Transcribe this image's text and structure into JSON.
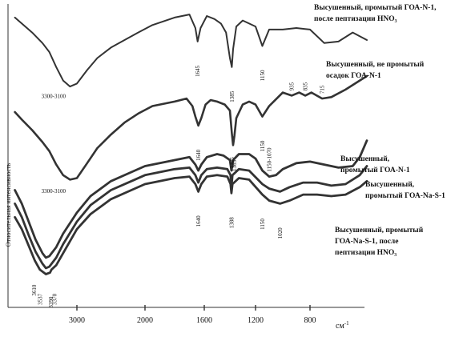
{
  "chart_data": {
    "type": "line",
    "ylabel": "Относительная интенсивность",
    "xunit": "см-1",
    "xunit_base": "см",
    "xunit_sup": "-1",
    "xticks": [
      {
        "label": "3000",
        "value": 3000
      },
      {
        "label": "2000",
        "value": 2000
      },
      {
        "label": "1600",
        "value": 1600
      },
      {
        "label": "1200",
        "value": 1200
      },
      {
        "label": "800",
        "value": 800
      }
    ],
    "series": [
      {
        "name": "Высушенный, промытый ГОА-N-1, после пептизации HNO3",
        "name_lines": [
          "Высушенный, промытый ГОА-N-1,",
          "после    пептизации HNO₃"
        ],
        "points": [
          [
            3900,
            0.955
          ],
          [
            3800,
            0.935
          ],
          [
            3650,
            0.905
          ],
          [
            3500,
            0.87
          ],
          [
            3400,
            0.84
          ],
          [
            3300,
            0.79
          ],
          [
            3200,
            0.745
          ],
          [
            3100,
            0.725
          ],
          [
            3000,
            0.735
          ],
          [
            2850,
            0.78
          ],
          [
            2700,
            0.82
          ],
          [
            2500,
            0.855
          ],
          [
            2300,
            0.88
          ],
          [
            2100,
            0.905
          ],
          [
            1950,
            0.93
          ],
          [
            1800,
            0.955
          ],
          [
            1700,
            0.965
          ],
          [
            1660,
            0.92
          ],
          [
            1645,
            0.875
          ],
          [
            1625,
            0.92
          ],
          [
            1580,
            0.96
          ],
          [
            1520,
            0.95
          ],
          [
            1470,
            0.935
          ],
          [
            1430,
            0.905
          ],
          [
            1400,
            0.82
          ],
          [
            1385,
            0.79
          ],
          [
            1375,
            0.85
          ],
          [
            1350,
            0.925
          ],
          [
            1300,
            0.945
          ],
          [
            1250,
            0.935
          ],
          [
            1200,
            0.925
          ],
          [
            1150,
            0.86
          ],
          [
            1100,
            0.915
          ],
          [
            1000,
            0.915
          ],
          [
            900,
            0.92
          ],
          [
            800,
            0.915
          ],
          [
            700,
            0.87
          ],
          [
            600,
            0.875
          ],
          [
            500,
            0.905
          ],
          [
            400,
            0.88
          ]
        ]
      },
      {
        "name": "Высушенный, не промытый осадок ГОА-N-1",
        "name_lines": [
          "Высушенный,  не промытый",
          "осадок   ГОА-N-1"
        ],
        "points": [
          [
            3900,
            0.64
          ],
          [
            3800,
            0.615
          ],
          [
            3650,
            0.58
          ],
          [
            3500,
            0.54
          ],
          [
            3400,
            0.51
          ],
          [
            3300,
            0.465
          ],
          [
            3200,
            0.43
          ],
          [
            3100,
            0.415
          ],
          [
            3000,
            0.42
          ],
          [
            2850,
            0.47
          ],
          [
            2700,
            0.52
          ],
          [
            2500,
            0.565
          ],
          [
            2300,
            0.605
          ],
          [
            2100,
            0.635
          ],
          [
            1950,
            0.66
          ],
          [
            1800,
            0.675
          ],
          [
            1720,
            0.685
          ],
          [
            1680,
            0.66
          ],
          [
            1660,
            0.625
          ],
          [
            1640,
            0.595
          ],
          [
            1620,
            0.62
          ],
          [
            1590,
            0.665
          ],
          [
            1550,
            0.68
          ],
          [
            1500,
            0.675
          ],
          [
            1440,
            0.665
          ],
          [
            1400,
            0.645
          ],
          [
            1385,
            0.57
          ],
          [
            1375,
            0.53
          ],
          [
            1365,
            0.56
          ],
          [
            1350,
            0.62
          ],
          [
            1300,
            0.665
          ],
          [
            1250,
            0.675
          ],
          [
            1200,
            0.665
          ],
          [
            1150,
            0.625
          ],
          [
            1100,
            0.66
          ],
          [
            1000,
            0.705
          ],
          [
            935,
            0.695
          ],
          [
            880,
            0.705
          ],
          [
            835,
            0.695
          ],
          [
            790,
            0.705
          ],
          [
            715,
            0.685
          ],
          [
            650,
            0.69
          ],
          [
            550,
            0.715
          ],
          [
            450,
            0.745
          ],
          [
            400,
            0.76
          ]
        ]
      },
      {
        "name": "Высушенный, промытый ГОА-N-1",
        "name_lines": [
          "Высушенный,",
          "промытый ГОА-N-1"
        ],
        "points": [
          [
            3900,
            0.38
          ],
          [
            3800,
            0.335
          ],
          [
            3700,
            0.275
          ],
          [
            3600,
            0.215
          ],
          [
            3500,
            0.17
          ],
          [
            3450,
            0.155
          ],
          [
            3400,
            0.16
          ],
          [
            3300,
            0.19
          ],
          [
            3200,
            0.235
          ],
          [
            3000,
            0.305
          ],
          [
            2800,
            0.36
          ],
          [
            2500,
            0.41
          ],
          [
            2200,
            0.44
          ],
          [
            2000,
            0.46
          ],
          [
            1800,
            0.48
          ],
          [
            1700,
            0.49
          ],
          [
            1660,
            0.465
          ],
          [
            1640,
            0.445
          ],
          [
            1620,
            0.465
          ],
          [
            1580,
            0.49
          ],
          [
            1500,
            0.5
          ],
          [
            1450,
            0.495
          ],
          [
            1400,
            0.48
          ],
          [
            1388,
            0.445
          ],
          [
            1375,
            0.48
          ],
          [
            1330,
            0.5
          ],
          [
            1250,
            0.5
          ],
          [
            1200,
            0.485
          ],
          [
            1150,
            0.445
          ],
          [
            1100,
            0.425
          ],
          [
            1050,
            0.43
          ],
          [
            1000,
            0.45
          ],
          [
            900,
            0.47
          ],
          [
            800,
            0.475
          ],
          [
            700,
            0.465
          ],
          [
            600,
            0.455
          ],
          [
            500,
            0.46
          ],
          [
            450,
            0.49
          ],
          [
            400,
            0.545
          ]
        ]
      },
      {
        "name": "Высушенный, промытый ГОА-Na-S-1",
        "name_lines": [
          "Высушенный,",
          "промытый  ГОА-Na-S-1"
        ],
        "points": [
          [
            3900,
            0.335
          ],
          [
            3800,
            0.29
          ],
          [
            3700,
            0.23
          ],
          [
            3600,
            0.175
          ],
          [
            3500,
            0.135
          ],
          [
            3450,
            0.12
          ],
          [
            3400,
            0.125
          ],
          [
            3300,
            0.155
          ],
          [
            3200,
            0.2
          ],
          [
            3000,
            0.275
          ],
          [
            2800,
            0.33
          ],
          [
            2500,
            0.38
          ],
          [
            2200,
            0.41
          ],
          [
            2000,
            0.43
          ],
          [
            1800,
            0.45
          ],
          [
            1700,
            0.455
          ],
          [
            1660,
            0.43
          ],
          [
            1640,
            0.405
          ],
          [
            1620,
            0.43
          ],
          [
            1580,
            0.45
          ],
          [
            1500,
            0.455
          ],
          [
            1420,
            0.45
          ],
          [
            1395,
            0.43
          ],
          [
            1388,
            0.39
          ],
          [
            1380,
            0.43
          ],
          [
            1330,
            0.45
          ],
          [
            1250,
            0.445
          ],
          [
            1150,
            0.4
          ],
          [
            1100,
            0.385
          ],
          [
            1020,
            0.375
          ],
          [
            950,
            0.39
          ],
          [
            850,
            0.405
          ],
          [
            750,
            0.405
          ],
          [
            650,
            0.395
          ],
          [
            550,
            0.4
          ],
          [
            450,
            0.43
          ],
          [
            400,
            0.46
          ]
        ]
      },
      {
        "name": "Высушенный, промытый ГОА-Na-S-1, после пептизации HNO3",
        "name_lines": [
          "Высушенный, промытый",
          "ГОА-Na-S-1, после",
          "пептизации HNO₃"
        ],
        "points": [
          [
            3900,
            0.29
          ],
          [
            3800,
            0.25
          ],
          [
            3700,
            0.195
          ],
          [
            3610,
            0.145
          ],
          [
            3537,
            0.115
          ],
          [
            3450,
            0.1
          ],
          [
            3390,
            0.105
          ],
          [
            3370,
            0.115
          ],
          [
            3300,
            0.13
          ],
          [
            3200,
            0.17
          ],
          [
            3000,
            0.25
          ],
          [
            2800,
            0.3
          ],
          [
            2500,
            0.35
          ],
          [
            2200,
            0.38
          ],
          [
            2000,
            0.4
          ],
          [
            1800,
            0.42
          ],
          [
            1700,
            0.425
          ],
          [
            1660,
            0.4
          ],
          [
            1640,
            0.375
          ],
          [
            1620,
            0.4
          ],
          [
            1580,
            0.425
          ],
          [
            1500,
            0.43
          ],
          [
            1420,
            0.425
          ],
          [
            1395,
            0.4
          ],
          [
            1388,
            0.37
          ],
          [
            1380,
            0.4
          ],
          [
            1330,
            0.42
          ],
          [
            1250,
            0.415
          ],
          [
            1150,
            0.365
          ],
          [
            1100,
            0.345
          ],
          [
            1020,
            0.335
          ],
          [
            950,
            0.345
          ],
          [
            850,
            0.365
          ],
          [
            750,
            0.365
          ],
          [
            650,
            0.36
          ],
          [
            550,
            0.365
          ],
          [
            450,
            0.39
          ],
          [
            400,
            0.41
          ]
        ]
      }
    ],
    "annotations": [
      {
        "text": "1645",
        "x": 1645,
        "series": 0,
        "position": "below",
        "rotated": true
      },
      {
        "text": "1385",
        "x": 1385,
        "series": 0,
        "position": "below",
        "rotated": true
      },
      {
        "text": "1150",
        "x": 1150,
        "series": 0,
        "position": "below",
        "rotated": true
      },
      {
        "text": "3300-3100",
        "x": 3200,
        "series": 0,
        "position": "below",
        "rotated": false
      },
      {
        "text": "1640",
        "x": 1640,
        "series": 1,
        "position": "below",
        "rotated": true
      },
      {
        "text": "1385",
        "x": 1385,
        "series": 1,
        "position": "below",
        "rotated": true
      },
      {
        "text": "1365",
        "x": 1365,
        "series": 1,
        "position": "below",
        "rotated": true
      },
      {
        "text": "1150",
        "x": 1150,
        "series": 1,
        "position": "below",
        "rotated": true
      },
      {
        "text": "935",
        "x": 935,
        "series": 1,
        "position": "above",
        "rotated": true
      },
      {
        "text": "835",
        "x": 835,
        "series": 1,
        "position": "above",
        "rotated": true
      },
      {
        "text": "715",
        "x": 715,
        "series": 1,
        "position": "above",
        "rotated": true
      },
      {
        "text": "3300-3100",
        "x": 3200,
        "series": 1,
        "position": "below",
        "rotated": false
      },
      {
        "text": "1150-1070",
        "x": 1100,
        "series": 2,
        "position": "above",
        "rotated": true
      },
      {
        "text": "1640",
        "x": 1640,
        "series": 4,
        "position": "below",
        "rotated": true
      },
      {
        "text": "1388",
        "x": 1388,
        "series": 4,
        "position": "below",
        "rotated": true
      },
      {
        "text": "1150",
        "x": 1150,
        "series": 4,
        "position": "below",
        "rotated": true
      },
      {
        "text": "1020",
        "x": 1020,
        "series": 4,
        "position": "below",
        "rotated": true
      },
      {
        "text": "3610",
        "x": 3610,
        "series": 4,
        "position": "below",
        "rotated": true
      },
      {
        "text": "3537",
        "x": 3537,
        "series": 4,
        "position": "below",
        "rotated": true
      },
      {
        "text": "3390",
        "x": 3390,
        "series": 4,
        "position": "below",
        "rotated": true
      },
      {
        "text": "3370",
        "x": 3370,
        "series": 4,
        "position": "below",
        "rotated": true
      }
    ],
    "grid": false
  }
}
